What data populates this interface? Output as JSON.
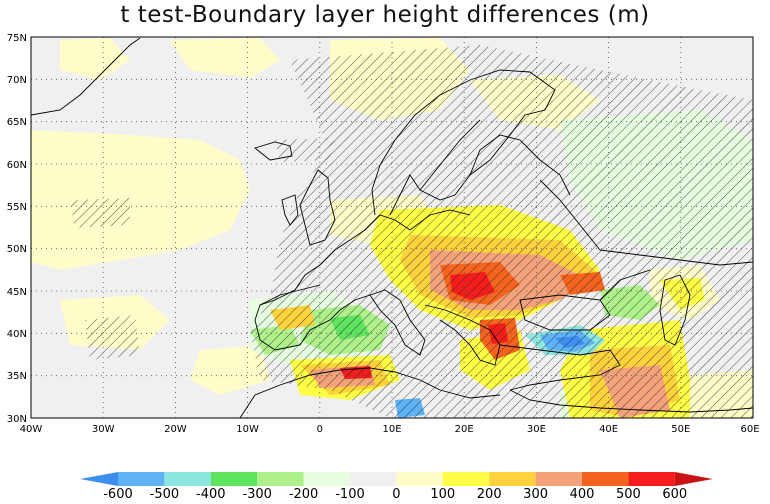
{
  "title": "t test-Boundary layer height differences (m)",
  "map": {
    "lat_labels": [
      "75N",
      "70N",
      "65N",
      "60N",
      "55N",
      "50N",
      "45N",
      "40N",
      "35N",
      "30N"
    ],
    "lon_labels": [
      "40W",
      "30W",
      "20W",
      "10W",
      "0",
      "10E",
      "20E",
      "30E",
      "40E",
      "50E",
      "60E"
    ]
  },
  "colorbar": {
    "labels": [
      "-600",
      "-500",
      "-400",
      "-300",
      "-200",
      "-100",
      "0",
      "100",
      "200",
      "300",
      "400",
      "500",
      "600"
    ],
    "colors": [
      "#3e8ef0",
      "#5fb2f5",
      "#8ee6e0",
      "#5fe45f",
      "#aef08a",
      "#e6fde0",
      "#f0f0f0",
      "#fefcc8",
      "#fefe46",
      "#fed23c",
      "#f4a27a",
      "#f5641e",
      "#f51c1c",
      "#c81414"
    ]
  }
}
